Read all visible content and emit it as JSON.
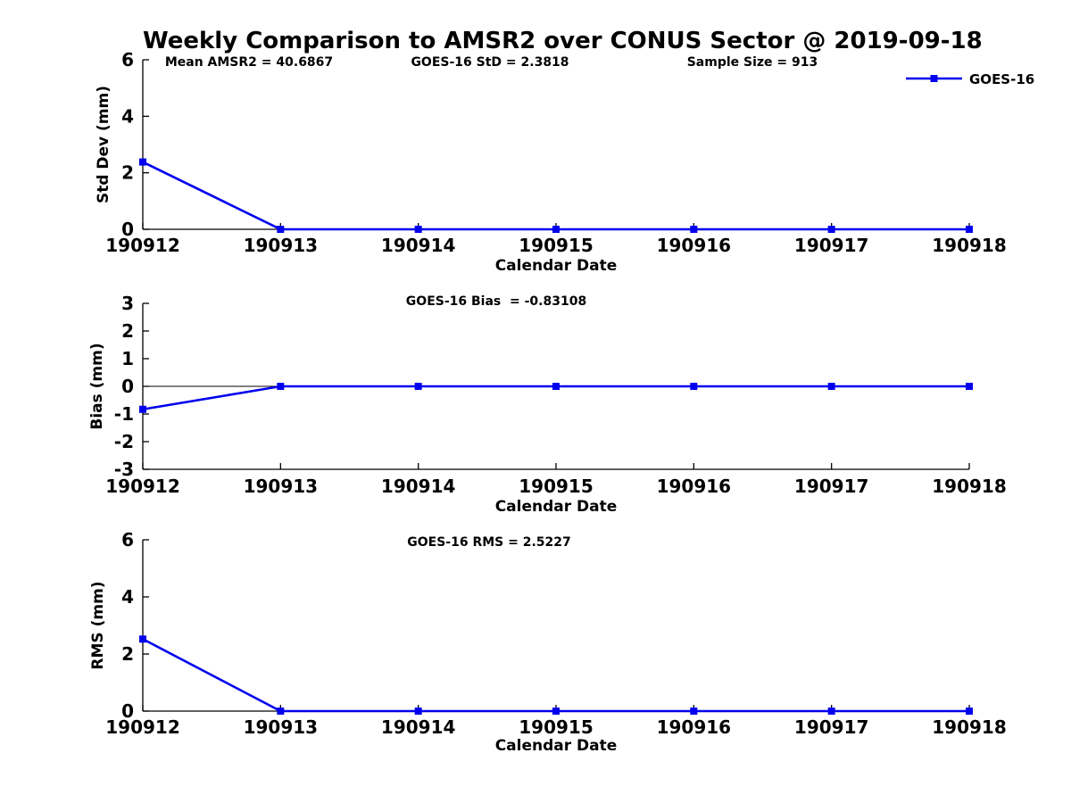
{
  "title": "Weekly Comparison to AMSR2 over CONUS Sector @ 2019-09-18",
  "colors": {
    "series": "#0000ee",
    "axis": "#000000"
  },
  "legend": {
    "label": "GOES-16"
  },
  "chart_data": [
    {
      "type": "line",
      "name": "std-dev-subplot",
      "annotations": [
        "Mean AMSR2 = 40.6867",
        "GOES-16 StD = 2.3818",
        "Sample Size = 913"
      ],
      "categories": [
        "190912",
        "190913",
        "190914",
        "190915",
        "190916",
        "190917",
        "190918"
      ],
      "series": [
        {
          "name": "GOES-16",
          "values": [
            2.3818,
            0,
            0,
            0,
            0,
            0,
            0
          ]
        }
      ],
      "xlabel": "Calendar Date",
      "ylabel": "Std Dev (mm)",
      "ylim": [
        0,
        6
      ],
      "yticks": [
        0,
        2,
        4,
        6
      ],
      "zero_line": false,
      "legend_position": "upper right",
      "grid": false
    },
    {
      "type": "line",
      "name": "bias-subplot",
      "annotations": [
        "GOES-16 Bias  = -0.83108"
      ],
      "categories": [
        "190912",
        "190913",
        "190914",
        "190915",
        "190916",
        "190917",
        "190918"
      ],
      "series": [
        {
          "name": "GOES-16",
          "values": [
            -0.83108,
            0,
            0,
            0,
            0,
            0,
            0
          ]
        }
      ],
      "xlabel": "Calendar Date",
      "ylabel": "Bias (mm)",
      "ylim": [
        -3,
        3
      ],
      "yticks": [
        -3,
        -2,
        -1,
        0,
        1,
        2,
        3
      ],
      "zero_line": true,
      "grid": false
    },
    {
      "type": "line",
      "name": "rms-subplot",
      "annotations": [
        "GOES-16 RMS = 2.5227"
      ],
      "categories": [
        "190912",
        "190913",
        "190914",
        "190915",
        "190916",
        "190917",
        "190918"
      ],
      "series": [
        {
          "name": "GOES-16",
          "values": [
            2.5227,
            0,
            0,
            0,
            0,
            0,
            0
          ]
        }
      ],
      "xlabel": "Calendar Date",
      "ylabel": "RMS (mm)",
      "ylim": [
        0,
        6
      ],
      "yticks": [
        0,
        2,
        4,
        6
      ],
      "zero_line": false,
      "grid": false
    }
  ]
}
